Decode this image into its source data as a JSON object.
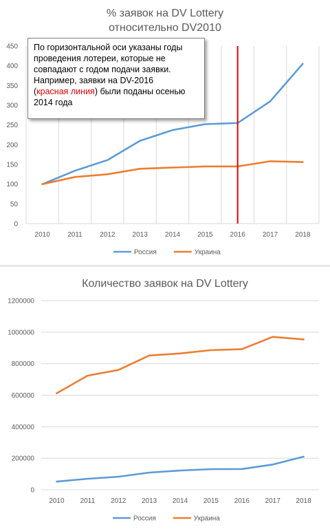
{
  "charts": [
    {
      "id": "top",
      "type": "line",
      "title_lines": [
        "% заявок на DV Lottery",
        "относительно DV2010"
      ],
      "x": [
        "2010",
        "2011",
        "2012",
        "2013",
        "2014",
        "2015",
        "2016",
        "2017",
        "2018"
      ],
      "y_ticks": [
        "0",
        "50",
        "100",
        "150",
        "200",
        "250",
        "300",
        "350",
        "400",
        "450"
      ],
      "ylim": [
        0,
        450
      ],
      "series": [
        {
          "name": "Россия",
          "color": "#5b9bd5",
          "values": [
            100,
            134,
            161,
            210,
            237,
            252,
            255,
            310,
            405
          ]
        },
        {
          "name": "Украина",
          "color": "#ed7d31",
          "values": [
            100,
            118,
            125,
            139,
            142,
            145,
            145,
            158,
            156
          ]
        }
      ],
      "marker_line": {
        "x": "2016",
        "color": "#e00000"
      },
      "grid": "vertical",
      "legend": "bottom"
    },
    {
      "id": "bottom",
      "type": "line",
      "title_lines": [
        "Количество заявок на DV Lottery"
      ],
      "x": [
        "2010",
        "2011",
        "2012",
        "2013",
        "2014",
        "2015",
        "2016",
        "2017",
        "2018"
      ],
      "y_ticks": [
        "0",
        "200000",
        "400000",
        "600000",
        "800000",
        "1000000",
        "1200000"
      ],
      "ylim": [
        0,
        1200000
      ],
      "series": [
        {
          "name": "Россия",
          "color": "#5b9bd5",
          "values": [
            52000,
            70000,
            83000,
            109000,
            122000,
            131000,
            132000,
            160000,
            210000
          ]
        },
        {
          "name": "Украина",
          "color": "#ed7d31",
          "values": [
            612000,
            724000,
            760000,
            852000,
            865000,
            886000,
            892000,
            970000,
            954000
          ]
        }
      ],
      "grid": "horizontal",
      "legend": "bottom"
    }
  ],
  "note": {
    "line1": "По горизонтальной оси указаны годы",
    "line2": "проведения лотереи, которые не",
    "line3": "совпадают с годом подачи заявки.",
    "line4": "Например, заявки на DV-2016",
    "paren_open": "(",
    "red_text": "красная линия",
    "line5_rest": ") были поданы осенью",
    "line6": "2014 года"
  }
}
